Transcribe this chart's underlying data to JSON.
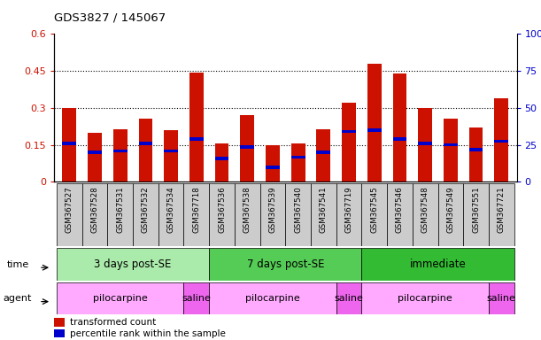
{
  "title": "GDS3827 / 145067",
  "samples": [
    "GSM367527",
    "GSM367528",
    "GSM367531",
    "GSM367532",
    "GSM367534",
    "GSM367718",
    "GSM367536",
    "GSM367538",
    "GSM367539",
    "GSM367540",
    "GSM367541",
    "GSM367719",
    "GSM367545",
    "GSM367546",
    "GSM367548",
    "GSM367549",
    "GSM367551",
    "GSM367721"
  ],
  "red_values": [
    0.3,
    0.2,
    0.215,
    0.255,
    0.21,
    0.445,
    0.155,
    0.27,
    0.148,
    0.155,
    0.215,
    0.32,
    0.48,
    0.44,
    0.3,
    0.255,
    0.22,
    0.34
  ],
  "blue_values": [
    0.155,
    0.12,
    0.125,
    0.155,
    0.125,
    0.175,
    0.095,
    0.142,
    0.06,
    0.1,
    0.12,
    0.205,
    0.21,
    0.175,
    0.155,
    0.15,
    0.13,
    0.165
  ],
  "bar_width": 0.55,
  "red_color": "#CC1100",
  "blue_color": "#0000CC",
  "ylim_left": [
    0,
    0.6
  ],
  "ylim_right": [
    0,
    100
  ],
  "yticks_left": [
    0,
    0.15,
    0.3,
    0.45,
    0.6
  ],
  "yticks_right": [
    0,
    25,
    50,
    75,
    100
  ],
  "hlines": [
    0.15,
    0.3,
    0.45
  ],
  "time_groups": [
    {
      "label": "3 days post-SE",
      "start": 0,
      "end": 6,
      "color": "#AAEAAA"
    },
    {
      "label": "7 days post-SE",
      "start": 6,
      "end": 12,
      "color": "#55CC55"
    },
    {
      "label": "immediate",
      "start": 12,
      "end": 18,
      "color": "#33BB33"
    }
  ],
  "agent_groups": [
    {
      "label": "pilocarpine",
      "start": 0,
      "end": 5,
      "color": "#FFAAFF"
    },
    {
      "label": "saline",
      "start": 5,
      "end": 6,
      "color": "#EE66EE"
    },
    {
      "label": "pilocarpine",
      "start": 6,
      "end": 11,
      "color": "#FFAAFF"
    },
    {
      "label": "saline",
      "start": 11,
      "end": 12,
      "color": "#EE66EE"
    },
    {
      "label": "pilocarpine",
      "start": 12,
      "end": 17,
      "color": "#FFAAFF"
    },
    {
      "label": "saline",
      "start": 17,
      "end": 18,
      "color": "#EE66EE"
    }
  ],
  "legend_red": "transformed count",
  "legend_blue": "percentile rank within the sample",
  "left_tick_color": "#CC1100",
  "right_tick_color": "#0000CC",
  "time_label": "time",
  "agent_label": "agent",
  "xtick_bg_color": "#CCCCCC",
  "fig_bg_color": "#FFFFFF"
}
